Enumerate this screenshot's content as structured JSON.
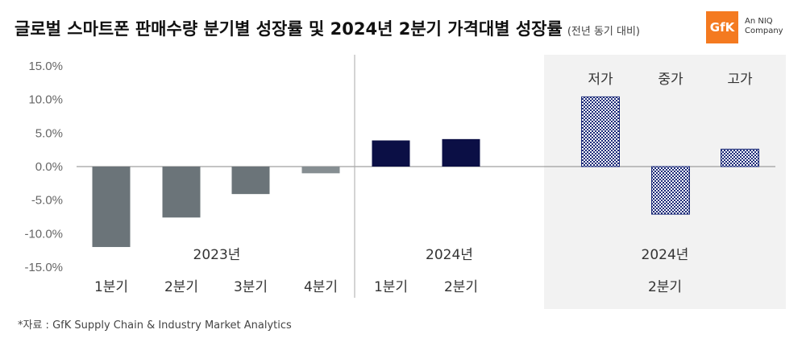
{
  "header": {
    "title": "글로벌 스마트폰 판매수량 분기별 성장률 및 2024년 2분기 가격대별 성장률",
    "subtitle": "(전년 동기 대비)"
  },
  "logo": {
    "text": "GfK",
    "line1": "An NIQ",
    "line2": "Company",
    "color": "#f47a20"
  },
  "source": "*자료 : GfK Supply Chain & Industry Market Analytics",
  "colors": {
    "gray": "#6b7479",
    "lightgray": "#868e92",
    "navy": "#0b0f45",
    "pattern": "#1b2a78",
    "panel": "#f2f2f2"
  },
  "chart_data": {
    "type": "bar",
    "ylim": [
      -15,
      15
    ],
    "yticks": [
      "15.0%",
      "10.0%",
      "5.0%",
      "0.0%",
      "-5.0%",
      "-10.0%",
      "-15.0%"
    ],
    "yticks_values": [
      15,
      10,
      5,
      0,
      -5,
      -10,
      -15
    ],
    "groups": [
      {
        "label": "2023년",
        "categories": [
          "1분기",
          "2분기",
          "3분기",
          "4분기"
        ],
        "values": [
          -12.0,
          -7.6,
          -4.1,
          -1.0
        ],
        "style": [
          "gray",
          "gray",
          "gray",
          "lightgray"
        ]
      },
      {
        "label": "2024년",
        "categories": [
          "1분기",
          "2분기"
        ],
        "values": [
          3.9,
          4.1
        ],
        "style": [
          "navy",
          "navy"
        ]
      },
      {
        "label": "2024년",
        "sublabel": "2분기",
        "categories": [
          "저가",
          "중가",
          "고가"
        ],
        "values": [
          10.4,
          -7.1,
          2.6
        ],
        "style": [
          "pattern",
          "pattern",
          "pattern"
        ]
      }
    ]
  }
}
